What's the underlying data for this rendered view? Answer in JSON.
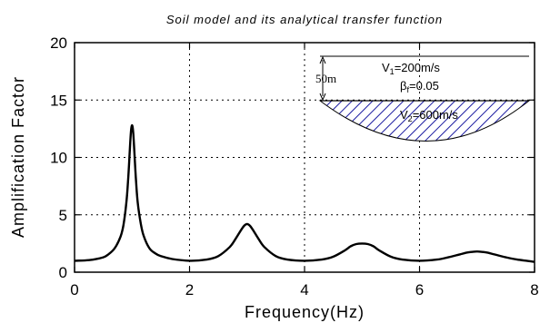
{
  "chart_data": {
    "type": "line",
    "title": "Soil model and its analytical transfer function",
    "xlabel": "Frequency(Hz)",
    "ylabel": "Amplification Factor",
    "xlim": [
      0,
      8
    ],
    "ylim": [
      0,
      20
    ],
    "xticks": [
      0,
      2,
      4,
      6,
      8
    ],
    "yticks": [
      0,
      5,
      10,
      15,
      20
    ],
    "grid": "dashed",
    "series": [
      {
        "x": [
          0,
          0.25,
          0.5,
          0.6,
          0.7,
          0.8,
          0.85,
          0.9,
          0.93,
          0.96,
          0.98,
          1.0,
          1.02,
          1.04,
          1.07,
          1.1,
          1.15,
          1.2,
          1.3,
          1.4,
          1.5,
          1.7,
          2.0,
          2.3,
          2.5,
          2.7,
          2.8,
          2.9,
          2.95,
          3.0,
          3.05,
          3.1,
          3.2,
          3.3,
          3.5,
          3.7,
          4.0,
          4.3,
          4.5,
          4.7,
          4.8,
          4.9,
          5.0,
          5.1,
          5.2,
          5.3,
          5.5,
          5.7,
          6.0,
          6.3,
          6.5,
          6.7,
          6.8,
          6.9,
          7.0,
          7.1,
          7.2,
          7.3,
          7.5,
          7.7,
          8.0
        ],
        "y": [
          1.0,
          1.05,
          1.3,
          1.6,
          2.1,
          3.1,
          4.1,
          6.0,
          7.9,
          10.5,
          12.2,
          12.8,
          12.2,
          10.5,
          7.9,
          6.0,
          4.3,
          3.2,
          2.1,
          1.65,
          1.4,
          1.15,
          1.0,
          1.1,
          1.4,
          2.2,
          2.9,
          3.7,
          4.05,
          4.2,
          4.05,
          3.7,
          2.9,
          2.2,
          1.4,
          1.1,
          1.0,
          1.1,
          1.35,
          1.9,
          2.25,
          2.45,
          2.5,
          2.45,
          2.25,
          1.9,
          1.35,
          1.1,
          1.0,
          1.1,
          1.3,
          1.55,
          1.68,
          1.76,
          1.8,
          1.76,
          1.68,
          1.55,
          1.3,
          1.1,
          0.9
        ]
      }
    ]
  },
  "inset": {
    "depth_label": "50m",
    "layer_velocity": "V",
    "layer_velocity_sub": "1",
    "layer_velocity_value": "=200m/s",
    "damping": "β",
    "damping_sub": "f",
    "damping_value": "=0.05",
    "base_velocity": "V",
    "base_velocity_sub": "2",
    "base_velocity_value": "=600m/s",
    "hatch_color": "#1a1aa0"
  }
}
